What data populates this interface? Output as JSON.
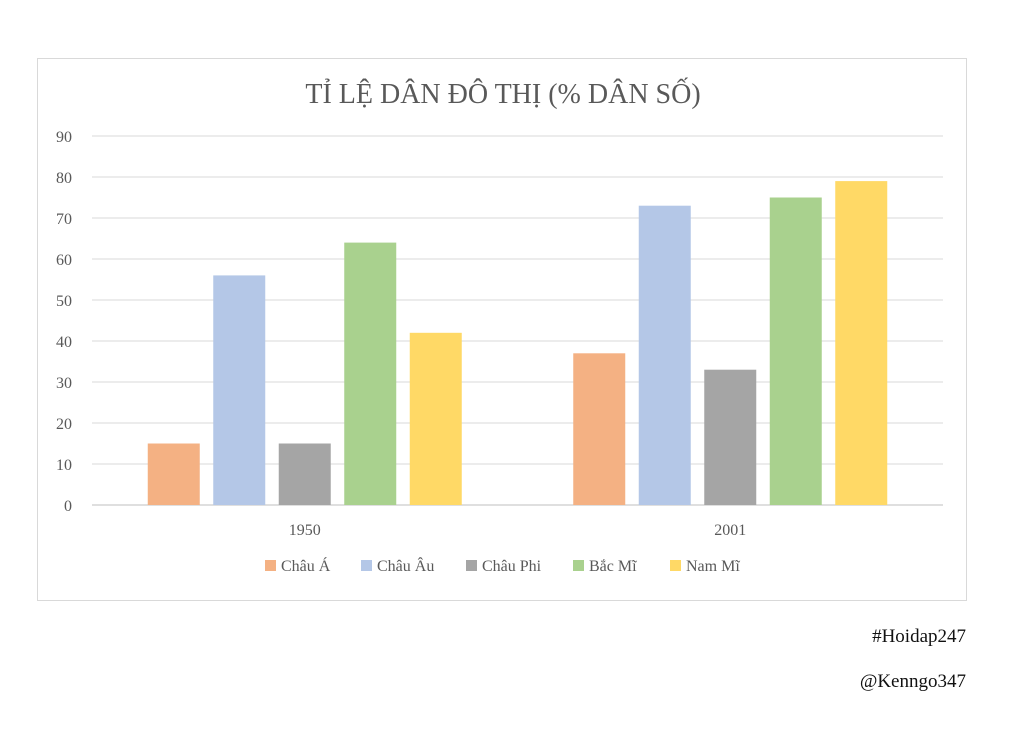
{
  "chart_data": {
    "type": "bar",
    "title": "TỈ LỆ DÂN ĐÔ THỊ (% DÂN SỐ)",
    "categories": [
      "1950",
      "2001"
    ],
    "series": [
      {
        "name": "Châu Á",
        "color": "#f4b183",
        "values": [
          15,
          37
        ]
      },
      {
        "name": "Châu Âu",
        "color": "#b4c7e7",
        "values": [
          56,
          73
        ]
      },
      {
        "name": "Châu Phi",
        "color": "#a5a5a5",
        "values": [
          15,
          33
        ]
      },
      {
        "name": "Bắc Mĩ",
        "color": "#a9d18e",
        "values": [
          64,
          75
        ]
      },
      {
        "name": "Nam Mĩ",
        "color": "#ffd966",
        "values": [
          42,
          79
        ]
      }
    ],
    "ylim": [
      0,
      90
    ],
    "yticks": [
      0,
      10,
      20,
      30,
      40,
      50,
      60,
      70,
      80,
      90
    ],
    "grid": true,
    "legend_position": "bottom"
  },
  "credits": {
    "hashtag": "#Hoidap247",
    "handle": "@Kenngo347"
  }
}
